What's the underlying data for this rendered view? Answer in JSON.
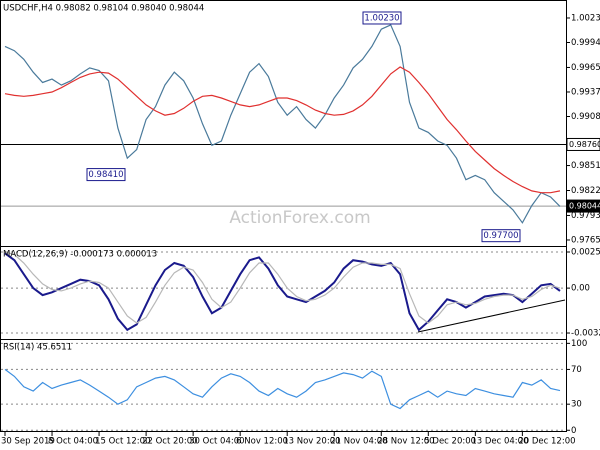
{
  "chart_data": [
    {
      "type": "line",
      "title": "USDCHF,H4 0.98082 0.98104 0.98040 0.98044",
      "watermark": "ActionForex.com",
      "series": [
        {
          "color": "#4a7a9b",
          "values": [
            0.999,
            0.9985,
            0.9975,
            0.996,
            0.9948,
            0.9952,
            0.9945,
            0.995,
            0.9958,
            0.9965,
            0.9962,
            0.995,
            0.9895,
            0.986,
            0.987,
            0.9905,
            0.992,
            0.9945,
            0.996,
            0.995,
            0.993,
            0.99,
            0.9875,
            0.988,
            0.991,
            0.9935,
            0.996,
            0.997,
            0.9955,
            0.9925,
            0.991,
            0.992,
            0.9905,
            0.9895,
            0.991,
            0.993,
            0.9945,
            0.9965,
            0.9975,
            0.999,
            1.001,
            1.0015,
            0.999,
            0.9925,
            0.9895,
            0.989,
            0.988,
            0.9875,
            0.986,
            0.9835,
            0.984,
            0.9835,
            0.982,
            0.981,
            0.98,
            0.9785,
            0.9805,
            0.982,
            0.9815,
            0.9804
          ]
        },
        {
          "color": "#e0302f",
          "values": [
            0.9935,
            0.9933,
            0.9932,
            0.9933,
            0.9935,
            0.9937,
            0.9942,
            0.9948,
            0.9954,
            0.9958,
            0.996,
            0.9959,
            0.9952,
            0.9942,
            0.9932,
            0.9922,
            0.9915,
            0.991,
            0.9912,
            0.9918,
            0.9926,
            0.9932,
            0.9933,
            0.993,
            0.9926,
            0.9922,
            0.992,
            0.9922,
            0.9926,
            0.993,
            0.993,
            0.9927,
            0.9922,
            0.9916,
            0.9912,
            0.991,
            0.9911,
            0.9915,
            0.9922,
            0.9932,
            0.9945,
            0.9958,
            0.9966,
            0.996,
            0.9948,
            0.9935,
            0.992,
            0.9905,
            0.9893,
            0.988,
            0.9868,
            0.9858,
            0.9848,
            0.984,
            0.9833,
            0.9827,
            0.9822,
            0.982,
            0.982,
            0.9822
          ]
        }
      ],
      "ylim": [
        0.9758,
        1.00439
      ],
      "yticks": [
        {
          "value": 1.0023,
          "label": "1.00230"
        },
        0.99945,
        0.99655,
        {
          "value": 0.9937,
          "label": "0.99370"
        },
        0.99085,
        0.98515,
        0.98225,
        0.97935,
        {
          "value": 0.9765,
          "label": "0.97650"
        }
      ],
      "annotations": [
        {
          "value": 1.0023,
          "label": "1.00230"
        },
        {
          "value": 0.9841,
          "label": "0.98410"
        },
        {
          "value": 0.977,
          "label": "0.97700"
        }
      ],
      "hlines": [
        {
          "value": 0.9876,
          "label": "0.98760",
          "color": "#000000"
        },
        {
          "value": 0.98044,
          "label": "0.98044",
          "color": "#999999"
        }
      ],
      "grid": false
    },
    {
      "type": "line",
      "title": "MACD(12,26,9) -0.000173 0.000013",
      "series": [
        {
          "color": "#1a1a8c",
          "values": [
            0.0025,
            0.002,
            0.001,
            0.0,
            -0.0005,
            -0.0003,
            0.0,
            0.0003,
            0.0006,
            0.0005,
            0.0002,
            -0.0008,
            -0.0022,
            -0.003,
            -0.0026,
            -0.0012,
            0.0002,
            0.0013,
            0.0018,
            0.0016,
            0.0008,
            -0.0006,
            -0.0018,
            -0.0014,
            -0.0002,
            0.001,
            0.002,
            0.0022,
            0.0014,
            0.0002,
            -0.0006,
            -0.0008,
            -0.001,
            -0.0006,
            -0.0002,
            0.0004,
            0.0014,
            0.002,
            0.0019,
            0.0017,
            0.0016,
            0.0018,
            0.001,
            -0.0018,
            -0.003,
            -0.0024,
            -0.0016,
            -0.0008,
            -0.001,
            -0.0014,
            -0.001,
            -0.0006,
            -0.0005,
            -0.0004,
            -0.0005,
            -0.001,
            -0.0004,
            0.0002,
            0.0003,
            -0.0002
          ]
        },
        {
          "color": "#b8b8b8",
          "values": [
            0.0026,
            0.0024,
            0.0018,
            0.001,
            0.0003,
            -0.0001,
            -0.0002,
            0.0,
            0.0003,
            0.0005,
            0.0004,
            0.0,
            -0.001,
            -0.002,
            -0.0025,
            -0.0021,
            -0.001,
            0.0002,
            0.0011,
            0.0015,
            0.0013,
            0.0004,
            -0.0008,
            -0.0014,
            -0.001,
            0.0,
            0.0011,
            0.0018,
            0.0018,
            0.001,
            0.0,
            -0.0006,
            -0.0009,
            -0.0008,
            -0.0005,
            0.0,
            0.0008,
            0.0015,
            0.0018,
            0.0018,
            0.0017,
            0.0017,
            0.0014,
            -0.0004,
            -0.002,
            -0.0025,
            -0.002,
            -0.0012,
            -0.001,
            -0.0012,
            -0.0011,
            -0.0008,
            -0.0006,
            -0.0005,
            -0.0005,
            -0.0008,
            -0.0006,
            -0.0001,
            0.0002,
            0.0
          ]
        }
      ],
      "ylim": [
        -0.00365,
        0.00302
      ],
      "yticks": [
        0.00259,
        {
          "value": 0,
          "label": "0.00"
        },
        -0.003221
      ],
      "grid": true
    },
    {
      "type": "line",
      "title": "RSI(14) 45.6511",
      "categories": [
        "30 Sep 2019",
        null,
        null,
        null,
        null,
        "8 Oct 04:00",
        null,
        null,
        null,
        null,
        "15 Oct 12:00",
        null,
        null,
        null,
        null,
        "22 Oct 20:00",
        null,
        null,
        null,
        null,
        "30 Oct 04:00",
        null,
        null,
        null,
        null,
        "6 Nov 12:00",
        null,
        null,
        null,
        null,
        "13 Nov 20:00",
        null,
        null,
        null,
        null,
        "21 Nov 04:00",
        null,
        null,
        null,
        null,
        "28 Nov 12:00",
        null,
        null,
        null,
        null,
        "5 Dec 20:00",
        null,
        null,
        null,
        null,
        "13 Dec 04:00",
        null,
        null,
        null,
        null,
        "20 Dec 12:00",
        null,
        null,
        null,
        null
      ],
      "series": [
        {
          "color": "#3d8fe0",
          "values": [
            70,
            62,
            50,
            45,
            55,
            48,
            52,
            55,
            58,
            52,
            45,
            38,
            30,
            35,
            50,
            55,
            60,
            62,
            58,
            50,
            42,
            38,
            50,
            60,
            65,
            62,
            55,
            45,
            40,
            48,
            42,
            38,
            45,
            55,
            58,
            62,
            66,
            64,
            60,
            68,
            62,
            30,
            25,
            35,
            40,
            45,
            38,
            45,
            42,
            40,
            48,
            45,
            42,
            40,
            38,
            55,
            52,
            58,
            48,
            45.65
          ]
        }
      ],
      "ylim": [
        -2,
        105
      ],
      "yticks": [
        100,
        70,
        30,
        0
      ],
      "grid": true
    }
  ]
}
